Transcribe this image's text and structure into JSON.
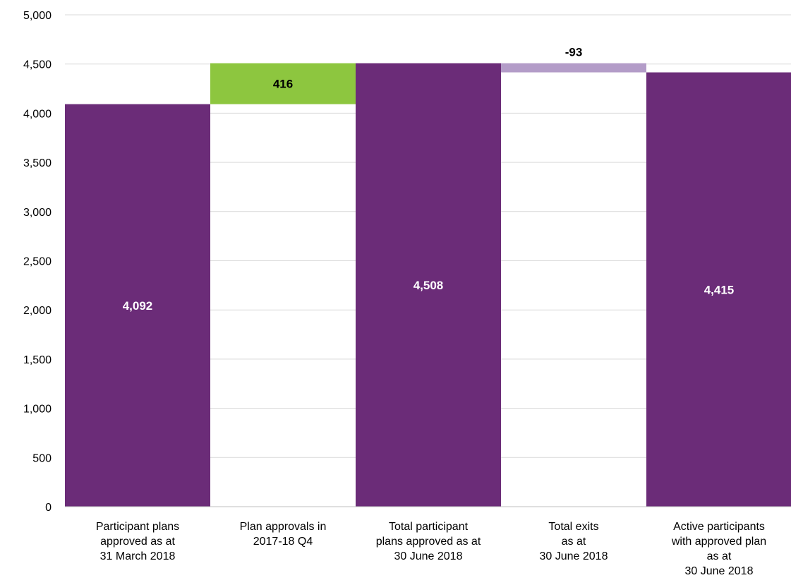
{
  "chart_data": {
    "type": "bar",
    "subtype": "waterfall",
    "categories": [
      [
        "Participant plans",
        "approved as at",
        "31 March 2018"
      ],
      [
        "Plan approvals in",
        "2017-18 Q4"
      ],
      [
        "Total participant",
        "plans approved as at",
        "30 June 2018"
      ],
      [
        "Total exits",
        "as at",
        "30 June 2018"
      ],
      [
        "Active participants",
        "with approved plan",
        "as at",
        "30 June 2018"
      ]
    ],
    "bars": [
      {
        "base": 0,
        "value": 4092,
        "label": "4,092",
        "kind": "total"
      },
      {
        "base": 4092,
        "value": 416,
        "label": "416",
        "kind": "increase"
      },
      {
        "base": 0,
        "value": 4508,
        "label": "4,508",
        "kind": "total"
      },
      {
        "base": 4415,
        "value": 93,
        "label": "-93",
        "kind": "decrease"
      },
      {
        "base": 0,
        "value": 4415,
        "label": "4,415",
        "kind": "total"
      }
    ],
    "ylim": [
      0,
      5000
    ],
    "yticks": [
      "0",
      "500",
      "1,000",
      "1,500",
      "2,000",
      "2,500",
      "3,000",
      "3,500",
      "4,000",
      "4,500",
      "5,000"
    ],
    "title": "",
    "xlabel": "",
    "ylabel": "",
    "grid": true,
    "legend": "none",
    "colors": {
      "total": "#6b2c78",
      "increase": "#8dc63f",
      "decrease": "#b39cc8",
      "grid": "#d9d9d9",
      "axis": "#bfbfbf",
      "total_label": "#ffffff",
      "change_label": "#000000"
    }
  }
}
